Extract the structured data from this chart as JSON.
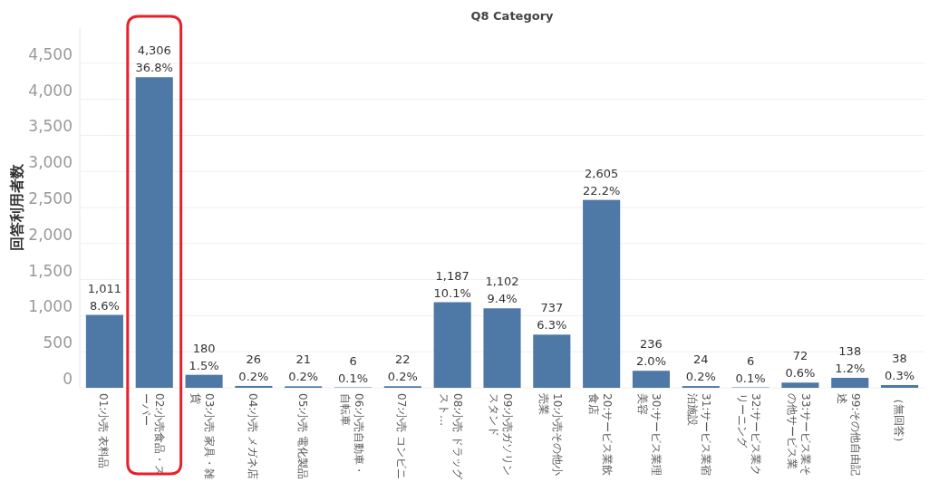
{
  "chart_data": {
    "type": "bar",
    "title": "Q8 Category",
    "ylabel": "回答利用者数",
    "color": "#4e78a6",
    "grid": "y",
    "categories": [
      "01:小売 衣料品",
      "02:小売食品・スーパー",
      "03:小売 家具・雑貨",
      "04:小売 メガネ店",
      "05:小売 電化製品",
      "06:小売自動車・自転車",
      "07:小売 コンビニ",
      "08:小売 ドラッグスト…",
      "09:小売ガソリンスタンド",
      "10:小売その他小売業",
      "20:サービス業飲食店",
      "30:サービス業理美容",
      "31:サービス業宿泊施設",
      "32:サービス業クリーニング",
      "33:サービス業その他サービス業",
      "99:その他自由記述",
      "（無回答）"
    ],
    "values": [
      1011,
      4306,
      180,
      26,
      21,
      6,
      22,
      1187,
      1102,
      737,
      2605,
      236,
      24,
      6,
      72,
      138,
      38
    ],
    "value_labels": [
      "1,011\n8.6%",
      "4,306\n36.8%",
      "180\n1.5%",
      "26\n0.2%",
      "21\n0.2%",
      "6\n0.1%",
      "22\n0.2%",
      "1,187\n10.1%",
      "1,102\n9.4%",
      "737\n6.3%",
      "2,605\n22.2%",
      "236\n2.0%",
      "24\n0.2%",
      "6\n0.1%",
      "72\n0.6%",
      "138\n1.2%",
      "38\n0.3%"
    ],
    "ylim": [
      0,
      5000
    ],
    "yticks": [
      {
        "value": 0,
        "label": "0"
      },
      {
        "value": 500,
        "label": "500"
      },
      {
        "value": 1000,
        "label": "1,000"
      },
      {
        "value": 1500,
        "label": "1,500"
      },
      {
        "value": 2000,
        "label": "2,000"
      },
      {
        "value": 2500,
        "label": "2,500"
      },
      {
        "value": 3000,
        "label": "3,000"
      },
      {
        "value": 3500,
        "label": "3,500"
      },
      {
        "value": 4000,
        "label": "4,000"
      },
      {
        "value": 4500,
        "label": "4,500"
      }
    ]
  }
}
